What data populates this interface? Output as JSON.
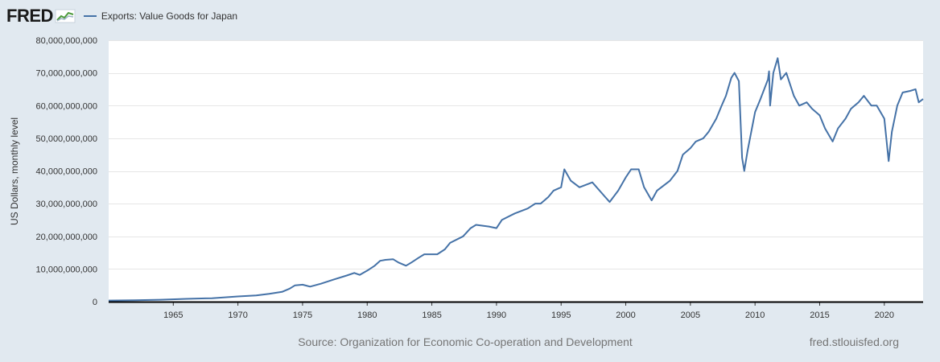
{
  "header": {
    "logo_text": "FRED",
    "logo_icon": "line-graph-icon"
  },
  "chart_data": {
    "type": "line",
    "series": [
      {
        "name": "Exports: Value Goods for Japan",
        "color": "#4572a7",
        "points": [
          [
            "1960-01",
            0.35
          ],
          [
            "1962-01",
            0.45
          ],
          [
            "1964-01",
            0.6
          ],
          [
            "1966-01",
            0.85
          ],
          [
            "1968-01",
            1.05
          ],
          [
            "1970-01",
            1.6
          ],
          [
            "1971-06",
            1.9
          ],
          [
            "1972-06",
            2.4
          ],
          [
            "1973-06",
            3.0
          ],
          [
            "1974-01",
            4.0
          ],
          [
            "1974-06",
            5.0
          ],
          [
            "1975-01",
            5.2
          ],
          [
            "1975-08",
            4.6
          ],
          [
            "1976-06",
            5.5
          ],
          [
            "1977-06",
            6.8
          ],
          [
            "1978-06",
            8.0
          ],
          [
            "1979-01",
            8.8
          ],
          [
            "1979-06",
            8.2
          ],
          [
            "1980-01",
            9.5
          ],
          [
            "1980-08",
            11.0
          ],
          [
            "1981-01",
            12.5
          ],
          [
            "1981-06",
            12.8
          ],
          [
            "1982-01",
            13.0
          ],
          [
            "1982-06",
            12.0
          ],
          [
            "1983-01",
            11.0
          ],
          [
            "1983-06",
            12.0
          ],
          [
            "1984-01",
            13.5
          ],
          [
            "1984-06",
            14.5
          ],
          [
            "1985-06",
            14.5
          ],
          [
            "1986-01",
            16.0
          ],
          [
            "1986-06",
            18.0
          ],
          [
            "1987-06",
            20.0
          ],
          [
            "1988-01",
            22.5
          ],
          [
            "1988-06",
            23.5
          ],
          [
            "1989-06",
            23.0
          ],
          [
            "1990-01",
            22.5
          ],
          [
            "1990-06",
            25.0
          ],
          [
            "1991-06",
            27.0
          ],
          [
            "1992-06",
            28.5
          ],
          [
            "1993-01",
            30.0
          ],
          [
            "1993-06",
            30.0
          ],
          [
            "1994-01",
            32.0
          ],
          [
            "1994-06",
            34.0
          ],
          [
            "1995-01",
            35.0
          ],
          [
            "1995-04",
            40.5
          ],
          [
            "1995-10",
            37.0
          ],
          [
            "1996-06",
            35.0
          ],
          [
            "1997-06",
            36.5
          ],
          [
            "1998-06",
            32.0
          ],
          [
            "1998-10",
            30.5
          ],
          [
            "1999-06",
            34.0
          ],
          [
            "2000-01",
            38.0
          ],
          [
            "2000-06",
            40.5
          ],
          [
            "2001-01",
            40.5
          ],
          [
            "2001-06",
            35.0
          ],
          [
            "2002-01",
            31.0
          ],
          [
            "2002-06",
            34.0
          ],
          [
            "2003-06",
            37.0
          ],
          [
            "2004-01",
            40.0
          ],
          [
            "2004-06",
            45.0
          ],
          [
            "2005-01",
            47.0
          ],
          [
            "2005-06",
            49.0
          ],
          [
            "2006-01",
            50.0
          ],
          [
            "2006-06",
            52.0
          ],
          [
            "2007-01",
            56.0
          ],
          [
            "2007-06",
            60.0
          ],
          [
            "2007-10",
            63.0
          ],
          [
            "2008-03",
            68.5
          ],
          [
            "2008-06",
            70.0
          ],
          [
            "2008-10",
            67.5
          ],
          [
            "2009-01",
            44.0
          ],
          [
            "2009-03",
            40.0
          ],
          [
            "2009-06",
            46.0
          ],
          [
            "2010-01",
            58.0
          ],
          [
            "2010-06",
            62.0
          ],
          [
            "2011-01",
            68.0
          ],
          [
            "2011-02",
            70.5
          ],
          [
            "2011-03",
            60.0
          ],
          [
            "2011-06",
            70.0
          ],
          [
            "2011-10",
            74.5
          ],
          [
            "2012-01",
            68.0
          ],
          [
            "2012-06",
            70.0
          ],
          [
            "2013-01",
            63.0
          ],
          [
            "2013-06",
            60.0
          ],
          [
            "2014-01",
            61.0
          ],
          [
            "2014-06",
            59.0
          ],
          [
            "2015-01",
            57.0
          ],
          [
            "2015-06",
            53.0
          ],
          [
            "2016-01",
            49.0
          ],
          [
            "2016-06",
            53.0
          ],
          [
            "2017-01",
            56.0
          ],
          [
            "2017-06",
            59.0
          ],
          [
            "2018-01",
            61.0
          ],
          [
            "2018-06",
            63.0
          ],
          [
            "2019-01",
            60.0
          ],
          [
            "2019-06",
            60.0
          ],
          [
            "2020-01",
            56.0
          ],
          [
            "2020-05",
            43.0
          ],
          [
            "2020-08",
            52.0
          ],
          [
            "2021-01",
            60.0
          ],
          [
            "2021-06",
            64.0
          ],
          [
            "2022-01",
            64.5
          ],
          [
            "2022-06",
            65.0
          ],
          [
            "2022-09",
            61.0
          ],
          [
            "2023-01",
            62.0
          ]
        ]
      }
    ],
    "x_tick_labels": [
      "1965",
      "1970",
      "1975",
      "1980",
      "1985",
      "1990",
      "1995",
      "2000",
      "2005",
      "2010",
      "2015",
      "2020"
    ],
    "x_ticks": [
      1965,
      1970,
      1975,
      1980,
      1985,
      1990,
      1995,
      2000,
      2005,
      2010,
      2015,
      2020
    ],
    "x_range": [
      1960,
      2023
    ],
    "y_tick_labels": [
      "0",
      "10,000,000,000",
      "20,000,000,000",
      "30,000,000,000",
      "40,000,000,000",
      "50,000,000,000",
      "60,000,000,000",
      "70,000,000,000",
      "80,000,000,000"
    ],
    "y_ticks_billions": [
      0,
      10,
      20,
      30,
      40,
      50,
      60,
      70,
      80
    ],
    "y_range_billions": [
      0,
      80
    ],
    "y_unit": "billions of US dollars",
    "ylabel": "US Dollars, monthly level",
    "xlabel": "",
    "grid": "horizontal",
    "legend_placement": "top-left"
  },
  "footer": {
    "source": "Source: Organization for Economic Co-operation and Development",
    "site": "fred.stlouisfed.org"
  }
}
